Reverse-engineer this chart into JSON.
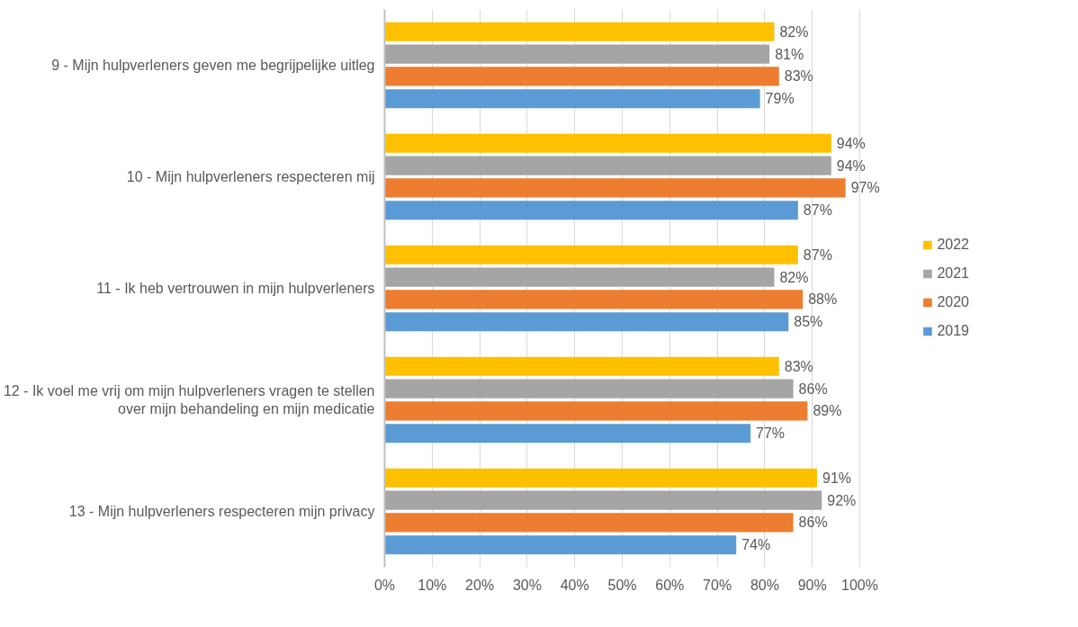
{
  "chart_data": {
    "type": "bar",
    "orientation": "horizontal",
    "categories": [
      "9 - Mijn hulpverleners geven me begrijpelijke uitleg",
      "10 - Mijn hulpverleners respecteren mij",
      "11 - Ik heb vertrouwen in mijn hulpverleners",
      "12 - Ik voel me vrij om mijn hulpverleners vragen te stellen\nover mijn behandeling en mijn medicatie",
      "13 - Mijn hulpverleners respecteren mijn privacy"
    ],
    "series": [
      {
        "name": "2022",
        "color": "#ffc000",
        "values": [
          82,
          94,
          87,
          83,
          91
        ],
        "value_labels": [
          "82%",
          "94%",
          "87%",
          "83%",
          "91%"
        ]
      },
      {
        "name": "2021",
        "color": "#a5a5a5",
        "values": [
          81,
          94,
          82,
          86,
          92
        ],
        "value_labels": [
          "81%",
          "94%",
          "82%",
          "86%",
          "92%"
        ]
      },
      {
        "name": "2020",
        "color": "#ed7d31",
        "values": [
          83,
          97,
          88,
          89,
          86
        ],
        "value_labels": [
          "83%",
          "97%",
          "88%",
          "89%",
          "86%"
        ]
      },
      {
        "name": "2019",
        "color": "#5b9bd5",
        "values": [
          79,
          87,
          85,
          77,
          74
        ],
        "value_labels": [
          "79%",
          "87%",
          "85%",
          "77%",
          "74%"
        ]
      }
    ],
    "xlim": [
      0,
      100
    ],
    "xticks": [
      {
        "value": 0,
        "label": "0%"
      },
      {
        "value": 10,
        "label": "10%"
      },
      {
        "value": 20,
        "label": "20%"
      },
      {
        "value": 30,
        "label": "30%"
      },
      {
        "value": 40,
        "label": "40%"
      },
      {
        "value": 50,
        "label": "50%"
      },
      {
        "value": 60,
        "label": "60%"
      },
      {
        "value": 70,
        "label": "70%"
      },
      {
        "value": 80,
        "label": "80%"
      },
      {
        "value": 90,
        "label": "90%"
      },
      {
        "value": 100,
        "label": "100%"
      }
    ],
    "grid": "x",
    "legend": "right"
  }
}
